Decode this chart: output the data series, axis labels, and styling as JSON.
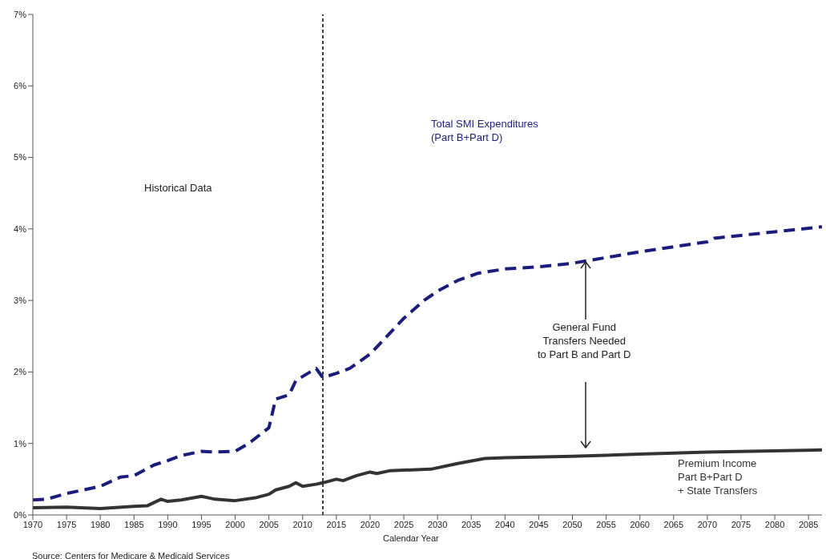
{
  "chart_data": {
    "type": "line",
    "xlabel": "Calendar Year",
    "xlim": [
      1970,
      2087
    ],
    "xticks": [
      1970,
      1975,
      1980,
      1985,
      1990,
      1995,
      2000,
      2005,
      2010,
      2015,
      2020,
      2025,
      2030,
      2035,
      2040,
      2045,
      2050,
      2055,
      2060,
      2065,
      2070,
      2075,
      2080,
      2085
    ],
    "ylim": [
      0,
      7
    ],
    "yticks": [
      {
        "value": 0,
        "label": "0%"
      },
      {
        "value": 1,
        "label": "1%"
      },
      {
        "value": 2,
        "label": "2%"
      },
      {
        "value": 3,
        "label": "3%"
      },
      {
        "value": 4,
        "label": "4%"
      },
      {
        "value": 5,
        "label": "5%"
      },
      {
        "value": 6,
        "label": "6%"
      },
      {
        "value": 7,
        "label": "7%"
      }
    ],
    "marker": "none",
    "series": [
      {
        "name": "Total SMI Expenditures\n(Part B+Part D)",
        "color": "#1c1c7c",
        "line_style": "dashed",
        "x": [
          1970,
          1972,
          1975,
          1980,
          1983,
          1985,
          1988,
          1990,
          1992,
          1995,
          1997,
          2000,
          2002,
          2005,
          2006,
          2008,
          2009,
          2012,
          2013,
          2015,
          2017,
          2020,
          2022,
          2025,
          2028,
          2030,
          2033,
          2036,
          2040,
          2045,
          2050,
          2055,
          2060,
          2065,
          2070,
          2071,
          2075,
          2080,
          2087
        ],
        "values": [
          0.21,
          0.22,
          0.3,
          0.4,
          0.53,
          0.55,
          0.7,
          0.76,
          0.83,
          0.89,
          0.88,
          0.89,
          1.0,
          1.22,
          1.62,
          1.68,
          1.88,
          2.05,
          1.92,
          1.98,
          2.05,
          2.25,
          2.45,
          2.75,
          3.0,
          3.13,
          3.28,
          3.38,
          3.44,
          3.47,
          3.52,
          3.6,
          3.68,
          3.75,
          3.82,
          3.87,
          3.91,
          3.96,
          4.03
        ]
      },
      {
        "name": "Premium Income\nPart B+Part D\n+ State Transfers",
        "color": "#333333",
        "line_style": "solid",
        "x": [
          1970,
          1975,
          1980,
          1985,
          1987,
          1989,
          1990,
          1992,
          1995,
          1997,
          2000,
          2003,
          2005,
          2006,
          2008,
          2009,
          2010,
          2012,
          2013,
          2015,
          2016,
          2018,
          2020,
          2021,
          2023,
          2029,
          2033,
          2037,
          2040,
          2050,
          2060,
          2070,
          2087
        ],
        "values": [
          0.1,
          0.11,
          0.09,
          0.12,
          0.13,
          0.22,
          0.19,
          0.21,
          0.26,
          0.22,
          0.2,
          0.24,
          0.29,
          0.35,
          0.4,
          0.45,
          0.4,
          0.43,
          0.45,
          0.5,
          0.48,
          0.55,
          0.6,
          0.58,
          0.62,
          0.64,
          0.72,
          0.79,
          0.8,
          0.82,
          0.85,
          0.88,
          0.91
        ]
      }
    ],
    "ref_lines": [
      {
        "axis": "x",
        "value": 2013,
        "color": "#000000",
        "line_style": "dashed"
      }
    ],
    "annotations": [
      "Historical Data",
      {
        "text": "General Fund\nTransfers Needed\nto Part B and Part D",
        "x": 2052,
        "y": 3.54
      },
      "Source: Centers for Medicare & Medicaid Services"
    ]
  }
}
